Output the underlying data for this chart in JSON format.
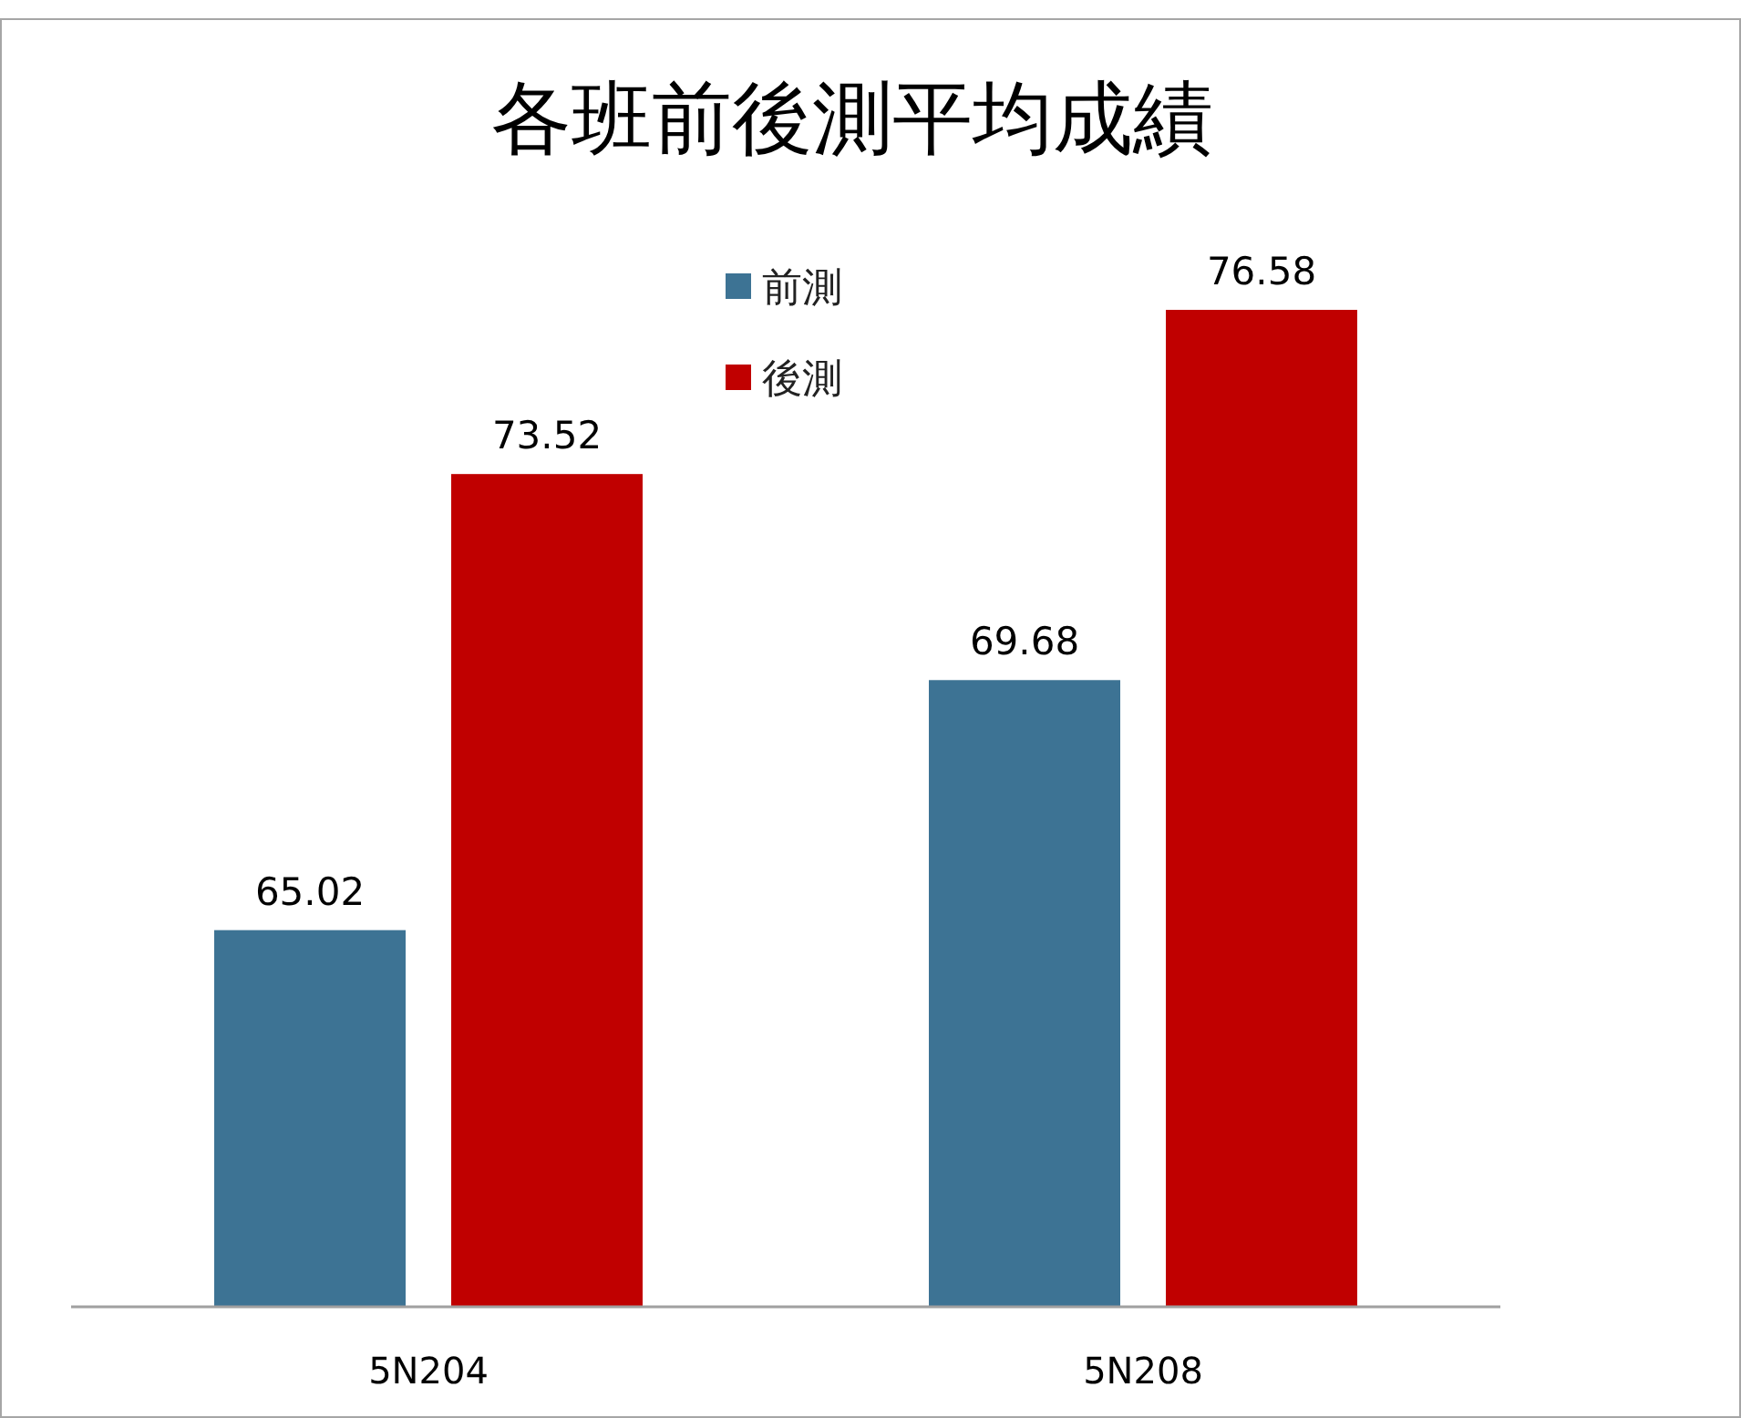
{
  "chart_data": {
    "type": "bar",
    "title": "各班前後測平均成績",
    "categories": [
      "5N204",
      "5N208"
    ],
    "series": [
      {
        "name": "前測",
        "color": "#3d7394",
        "values": [
          65.02,
          69.68
        ]
      },
      {
        "name": "後測",
        "color": "#c00000",
        "values": [
          73.52,
          76.58
        ]
      }
    ],
    "ylim": [
      58,
      76.58
    ],
    "data_labels": true,
    "legend": "top",
    "tick_labels": "x"
  }
}
